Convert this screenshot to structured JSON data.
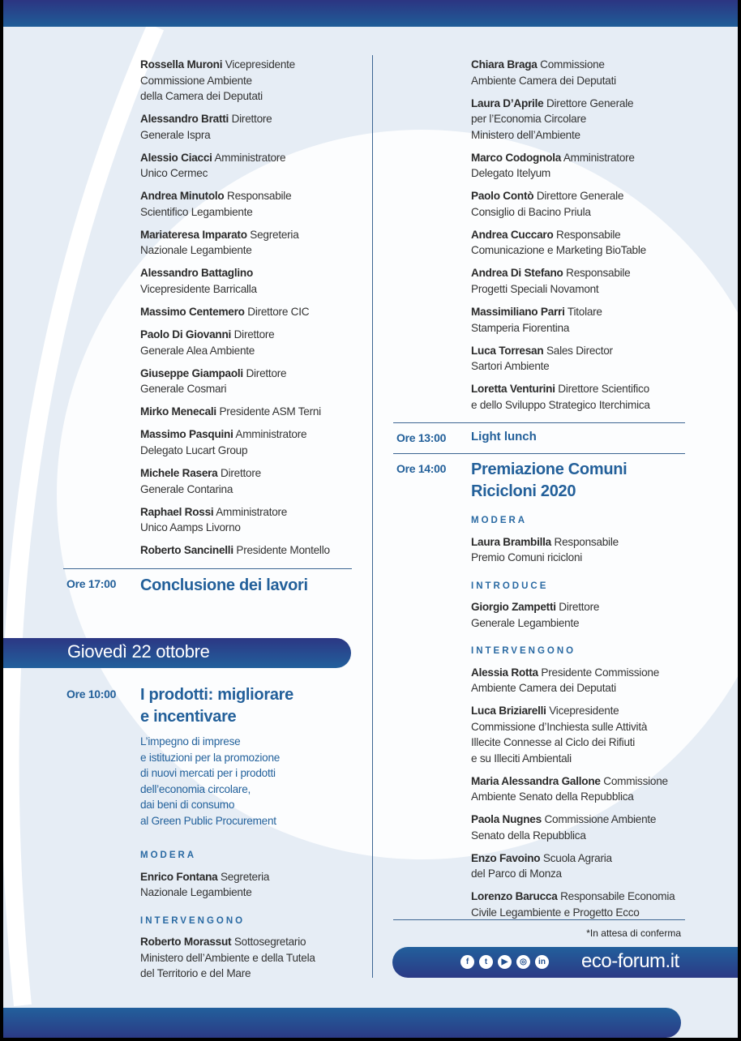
{
  "day1": {
    "left_speakers": [
      {
        "name": "Rossella Muroni",
        "role": "Vicepresidente\nCommissione Ambiente\ndella Camera dei Deputati"
      },
      {
        "name": "Alessandro Bratti",
        "role": "Direttore\nGenerale Ispra"
      },
      {
        "name": "Alessio Ciacci",
        "role": "Amministratore\nUnico Cermec"
      },
      {
        "name": "Andrea Minutolo",
        "role": "Responsabile\nScientifico Legambiente"
      },
      {
        "name": "Mariateresa Imparato",
        "role": "Segreteria\nNazionale Legambiente"
      },
      {
        "name": "Alessandro Battaglino",
        "role": "\nVicepresidente Barricalla"
      },
      {
        "name": "Massimo Centemero",
        "role": "Direttore CIC"
      },
      {
        "name": "Paolo Di Giovanni",
        "role": "Direttore\nGenerale Alea Ambiente"
      },
      {
        "name": "Giuseppe Giampaoli",
        "role": "Direttore\nGenerale Cosmari"
      },
      {
        "name": "Mirko Menecali",
        "role": "Presidente ASM Terni"
      },
      {
        "name": "Massimo Pasquini",
        "role": "Amministratore\nDelegato Lucart Group"
      },
      {
        "name": "Michele Rasera",
        "role": "Direttore\nGenerale Contarina"
      },
      {
        "name": "Raphael Rossi",
        "role": "Amministratore\nUnico Aamps Livorno"
      },
      {
        "name": "Roberto Sancinelli",
        "role": "Presidente Montello"
      }
    ],
    "closing": {
      "time": "Ore 17:00",
      "title": "Conclusione dei lavori"
    },
    "right_speakers": [
      {
        "name": "Chiara Braga",
        "role": "Commissione\nAmbiente Camera dei Deputati"
      },
      {
        "name": "Laura D’Aprile",
        "role": "Direttore Generale\nper l’Economia Circolare\nMinistero dell’Ambiente"
      },
      {
        "name": "Marco Codognola",
        "role": "Amministratore\nDelegato Itelyum"
      },
      {
        "name": "Paolo Contò",
        "role": "Direttore Generale\nConsiglio di Bacino Priula"
      },
      {
        "name": "Andrea Cuccaro",
        "role": "Responsabile\nComunicazione e Marketing BioTable"
      },
      {
        "name": "Andrea Di Stefano",
        "role": "Responsabile\nProgetti Speciali Novamont"
      },
      {
        "name": "Massimiliano Parri",
        "role": "Titolare\nStamperia Fiorentina"
      },
      {
        "name": "Luca Torresan",
        "role": "Sales Director\nSartori Ambiente"
      },
      {
        "name": "Loretta Venturini",
        "role": "Direttore Scientifico\ne dello Sviluppo Strategico Iterchimica"
      }
    ],
    "lunch": {
      "time": "Ore 13:00",
      "title": "Light lunch"
    },
    "awards": {
      "time": "Ore 14:00",
      "title": "Premiazione Comuni\nRicicloni 2020",
      "modera_label": "MODERA",
      "modera": [
        {
          "name": "Laura Brambilla",
          "role": "Responsabile\nPremio Comuni ricicloni"
        }
      ],
      "introduce_label": "INTRODUCE",
      "introduce": [
        {
          "name": "Giorgio Zampetti",
          "role": "Direttore\nGenerale Legambiente"
        }
      ],
      "intervengono_label": "INTERVENGONO",
      "intervengono": [
        {
          "name": "Alessia Rotta",
          "role": "Presidente Commissione\nAmbiente Camera dei Deputati"
        },
        {
          "name": "Luca Briziarelli",
          "role": "Vicepresidente\nCommissione d’Inchiesta sulle Attività\nIllecite Connesse al Ciclo dei Rifiuti\ne su Illeciti Ambientali"
        },
        {
          "name": "Maria Alessandra Gallone",
          "role": "Commissione\nAmbiente Senato della Repubblica"
        },
        {
          "name": "Paola Nugnes",
          "role": "Commissione Ambiente\nSenato della Repubblica"
        },
        {
          "name": "Enzo Favoino",
          "role": "Scuola Agraria\ndel Parco di Monza"
        },
        {
          "name": "Lorenzo Barucca",
          "role": "Responsabile Economia\nCivile Legambiente e Progetto Ecco"
        }
      ]
    },
    "note": "*In attesa di conferma"
  },
  "day2": {
    "date": "Giovedì 22 ottobre",
    "session": {
      "time": "Ore 10:00",
      "title": "I prodotti: migliorare\ne incentivare",
      "description": "L’impegno di imprese\ne istituzioni per la promozione\ndi nuovi mercati per i prodotti\ndell’economia circolare,\ndai beni di consumo\nal Green Public Procurement",
      "modera_label": "MODERA",
      "modera": [
        {
          "name": "Enrico Fontana",
          "role": "Segreteria\nNazionale Legambiente"
        }
      ],
      "intervengono_label": "INTERVENGONO",
      "intervengono": [
        {
          "name": "Roberto Morassut",
          "role": "Sottosegretario\nMinistero dell’Ambiente e della Tutela\ndel Territorio e del Mare"
        }
      ]
    }
  },
  "footer": {
    "social_icons": [
      "facebook-icon",
      "twitter-icon",
      "youtube-icon",
      "instagram-icon",
      "linkedin-icon"
    ],
    "social_glyphs": [
      "f",
      "t",
      "▶",
      "◎",
      "in"
    ],
    "site": "eco-forum.it"
  },
  "colors": {
    "brand_blue": "#23609a",
    "banner_dark": "#2b3a85",
    "background": "#e6edf5"
  }
}
